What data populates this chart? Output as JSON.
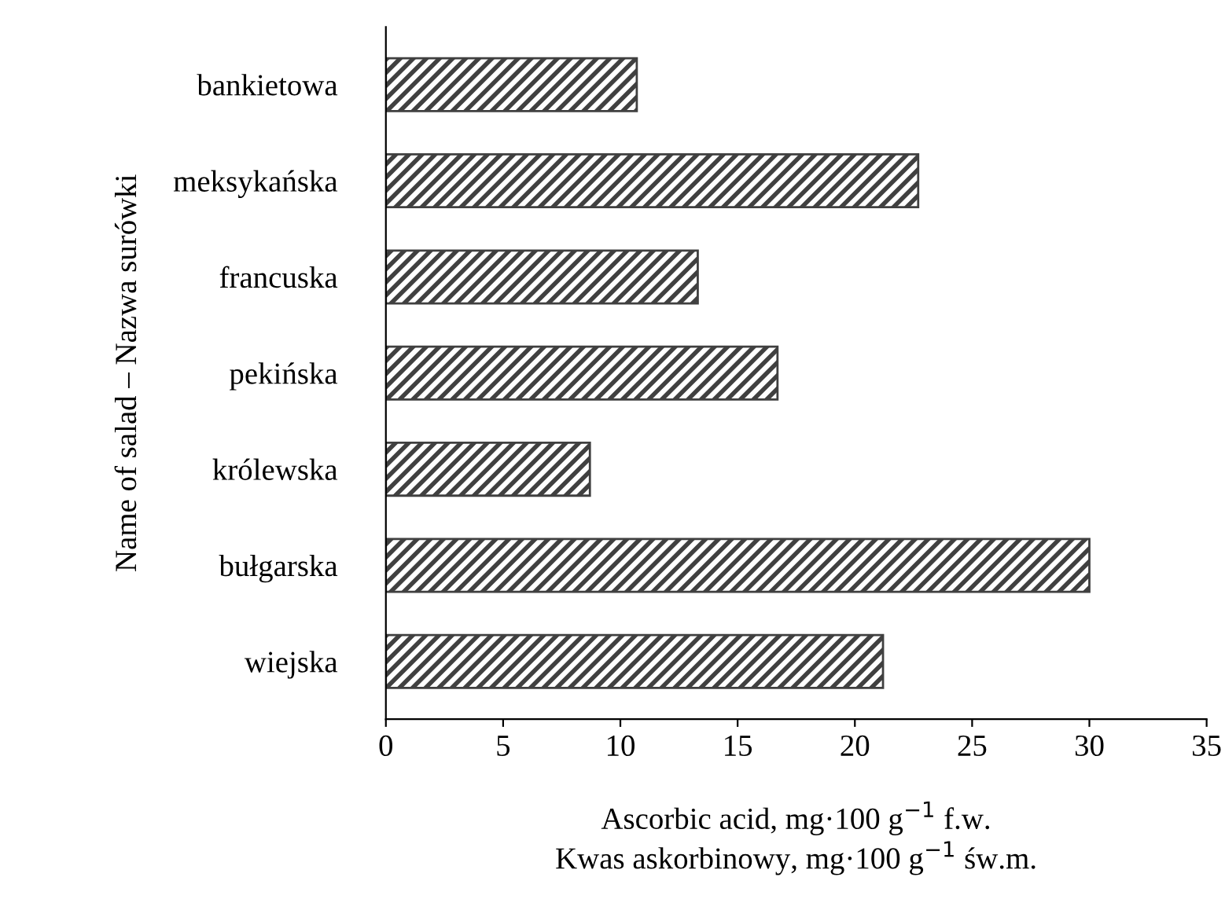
{
  "chart_data": {
    "type": "bar",
    "orientation": "horizontal",
    "xlabel": "Ascorbic acid, mg·100 g$^{−1}$ f.w.\nKwas askorbinowy, mg·100 g$^{−1}$ św.m.",
    "ylabel": "Name of salad – Nazwa surówki",
    "categories": [
      "bankietowa",
      "meksykańska",
      "francuska",
      "pekińska",
      "królewska",
      "bułgarska",
      "wiejska"
    ],
    "values": [
      10.7,
      22.7,
      13.3,
      16.7,
      8.7,
      30.0,
      21.2
    ],
    "color": "#404040",
    "xlim": [
      0,
      35
    ],
    "xticks": [
      0,
      5,
      10,
      15,
      20,
      25,
      30,
      35
    ],
    "grid": false,
    "legend": false
  }
}
